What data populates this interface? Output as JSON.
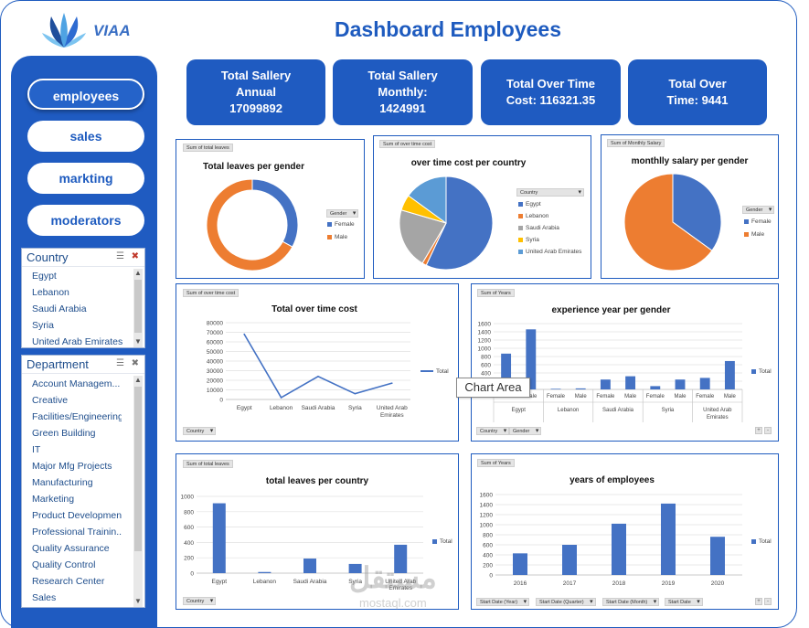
{
  "brand": {
    "name": "VIAA"
  },
  "dashboard": {
    "title": "Dashboard Employees"
  },
  "nav": {
    "items": [
      {
        "label": "employees",
        "active": true
      },
      {
        "label": "sales",
        "active": false
      },
      {
        "label": "markting",
        "active": false
      },
      {
        "label": "moderators",
        "active": false
      }
    ]
  },
  "country_slicer": {
    "title": "Country",
    "items": [
      "Egypt",
      "Lebanon",
      "Saudi Arabia",
      "Syria",
      "United Arab Emirates"
    ]
  },
  "department_slicer": {
    "title": "Department",
    "items": [
      "Account Managem...",
      "Creative",
      "Facilities/Engineering",
      "Green Building",
      "IT",
      "Major Mfg Projects",
      "Manufacturing",
      "Marketing",
      "Product Development",
      "Professional Trainin...",
      "Quality Assurance",
      "Quality Control",
      "Research Center",
      "Sales"
    ]
  },
  "kpis": [
    {
      "line1": "Total Sallery",
      "line2": "Annual",
      "line3": "17099892"
    },
    {
      "line1": "Total Sallery",
      "line2": "Monthly:",
      "line3": "1424991"
    },
    {
      "line1": "Total Over Time",
      "line2": "Cost: 116321.35"
    },
    {
      "line1": "Total Over",
      "line2": "Time: 9441"
    }
  ],
  "colors": {
    "primary": "#1f5bc1",
    "blue": "#4472c4",
    "orange": "#ed7d31",
    "gray": "#a5a5a5",
    "yellow": "#ffc000",
    "lightblue": "#5b9bd5"
  },
  "tooltip": "Chart Area",
  "watermark": {
    "arabic": "مستقل",
    "latin": "mostaql.com"
  },
  "chart_data": [
    {
      "id": "leaves_gender",
      "type": "pie",
      "title": "Total leaves per gender",
      "field": "Sum of total leaves",
      "legend_title": "Gender",
      "labels": [
        "Female",
        "Male"
      ],
      "values": [
        33,
        67
      ]
    },
    {
      "id": "ot_country",
      "type": "pie",
      "title": "over time cost per country",
      "field": "Sum of over time cost",
      "legend_title": "Country",
      "labels": [
        "Egypt",
        "Lebanon",
        "Saudi Arabia",
        "Syria",
        "United Arab Emirates"
      ],
      "values": [
        57,
        1.5,
        21,
        5.5,
        15
      ]
    },
    {
      "id": "salary_gender",
      "type": "pie",
      "title": "monthlly salary per gender",
      "field": "Sum of Monthly Salary",
      "legend_title": "Gender",
      "labels": [
        "Female",
        "Male"
      ],
      "values": [
        35,
        65
      ]
    },
    {
      "id": "ot_total",
      "type": "line",
      "title": "Total over time cost",
      "field": "Sum of over time cost",
      "filter": "Country",
      "series_name": "Total",
      "categories": [
        "Egypt",
        "Lebanon",
        "Saudi Arabia",
        "Syria",
        "United Arab Emirates"
      ],
      "values": [
        68000,
        2000,
        24000,
        6000,
        17000
      ],
      "ylim": [
        0,
        80000
      ],
      "yticks": [
        0,
        10000,
        20000,
        30000,
        40000,
        50000,
        60000,
        70000,
        80000
      ]
    },
    {
      "id": "exp_gender",
      "type": "bar",
      "title": "experience year per gender",
      "field": "Sum of Years",
      "filters": [
        "Country",
        "Gender"
      ],
      "series_name": "Total",
      "groups": [
        "Egypt",
        "Lebanon",
        "Saudi Arabia",
        "Syria",
        "United Arab Emirates"
      ],
      "categories": [
        "Female",
        "Male",
        "Female",
        "Male",
        "Female",
        "Male",
        "Female",
        "Male",
        "Female",
        "Male"
      ],
      "values": [
        870,
        1460,
        15,
        25,
        240,
        320,
        80,
        240,
        280,
        690
      ],
      "ylim": [
        0,
        1600
      ],
      "yticks": [
        0,
        200,
        400,
        600,
        800,
        1000,
        1200,
        1400,
        1600
      ]
    },
    {
      "id": "leaves_country",
      "type": "bar",
      "title": "total leaves per country",
      "field": "Sum of total leaves",
      "filter": "Country",
      "series_name": "Total",
      "categories": [
        "Egypt",
        "Lebanon",
        "Saudi Arabia",
        "Syria",
        "United Arab Emirates"
      ],
      "values": [
        910,
        15,
        190,
        120,
        370
      ],
      "ylim": [
        0,
        1000
      ],
      "yticks": [
        0,
        200,
        400,
        600,
        800,
        1000
      ]
    },
    {
      "id": "years_emp",
      "type": "bar",
      "title": "years of employees",
      "field": "Sum of Years",
      "filters": [
        "Start Date (Year)",
        "Start Date (Quarter)",
        "Start Date (Month)",
        "Start Date"
      ],
      "series_name": "Total",
      "categories": [
        "2016",
        "2017",
        "2018",
        "2019",
        "2020"
      ],
      "values": [
        430,
        600,
        1020,
        1420,
        760
      ],
      "ylim": [
        0,
        1600
      ],
      "yticks": [
        0,
        200,
        400,
        600,
        800,
        1000,
        1200,
        1400,
        1600
      ]
    }
  ]
}
